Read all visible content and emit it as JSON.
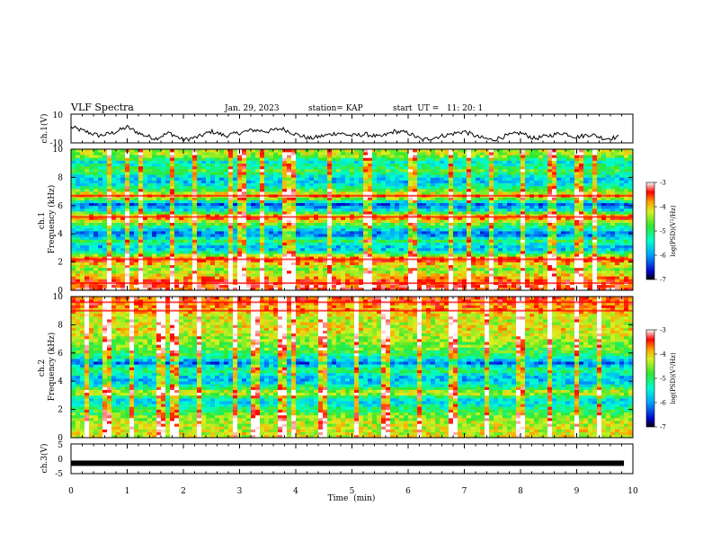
{
  "header": {
    "title": "VLF Spectra",
    "date": "Jan. 29, 2023",
    "station": "station= KAP",
    "start": "start  UT =   11: 20: 1"
  },
  "colors": {
    "accent_red": "#ff0000",
    "mid_green": "#2fe82f",
    "low_blue": "#0000c8",
    "trace": "#000000"
  },
  "chart_data": [
    {
      "id": "ch1-waveform",
      "type": "line",
      "ylabel": "ch.1(V)",
      "ylim": [
        -10,
        10
      ],
      "yticks": [
        "10",
        "-10"
      ],
      "xlim": [
        0,
        10
      ],
      "series": [
        {
          "x": [
            0,
            0.25,
            0.5,
            0.75,
            1,
            1.25,
            1.5,
            1.75,
            2,
            2.25,
            2.5,
            2.75,
            3,
            3.25,
            3.5,
            3.75,
            4,
            4.25,
            4.5,
            4.75,
            5,
            5.25,
            5.5,
            5.75,
            6,
            6.25,
            6.5,
            6.75,
            7,
            7.25,
            7.5,
            7.75,
            8,
            8.25,
            8.5,
            8.75,
            9,
            9.25,
            9.5,
            9.75
          ],
          "y": [
            1,
            -2,
            -5,
            -3,
            1,
            -4,
            -7,
            -3,
            -8,
            -6,
            -2,
            -5,
            -3,
            -1,
            -2,
            0,
            -4,
            -7,
            -5,
            -3,
            -5,
            -4,
            -6,
            -2,
            -3,
            -8,
            -6,
            -4,
            -2,
            -6,
            -8,
            -5,
            -3,
            -7,
            -5,
            -3,
            -6,
            -4,
            -7,
            -6
          ]
        }
      ]
    },
    {
      "id": "ch1-spectrogram",
      "type": "heatmap",
      "ylabel": "ch.1\nFrequency (kHz)",
      "ylim": [
        0,
        10
      ],
      "xlim": [
        0,
        10
      ],
      "yticks": [
        "0",
        "2",
        "4",
        "6",
        "8",
        "10"
      ],
      "colorbar": {
        "label": "log(PSD)(V²/Hz)",
        "range": [
          -7,
          -3
        ],
        "ticks": [
          "-3",
          "-4",
          "-5",
          "-6",
          "-7"
        ]
      },
      "band_levels": [
        {
          "f": 0.5,
          "level": -3.4
        },
        {
          "f": 1.5,
          "level": -4.6
        },
        {
          "f": 2.2,
          "level": -3.4
        },
        {
          "f": 2.7,
          "level": -5.2
        },
        {
          "f": 3.0,
          "level": -6.0
        },
        {
          "f": 3.5,
          "level": -5.0
        },
        {
          "f": 4.0,
          "level": -6.3
        },
        {
          "f": 4.6,
          "level": -5.0
        },
        {
          "f": 5.2,
          "level": -3.5
        },
        {
          "f": 5.7,
          "level": -5.6
        },
        {
          "f": 6.1,
          "level": -6.2
        },
        {
          "f": 6.7,
          "level": -3.8
        },
        {
          "f": 7.3,
          "level": -5.2
        },
        {
          "f": 7.8,
          "level": -5.9
        },
        {
          "f": 8.5,
          "level": -4.8
        },
        {
          "f": 9.1,
          "level": -5.5
        },
        {
          "f": 9.6,
          "level": -4.4
        }
      ],
      "impulse_times": [
        0.68,
        1.0,
        1.25,
        1.78,
        2.2,
        2.85,
        3.05,
        3.4,
        3.78,
        3.92,
        4.6,
        5.3,
        6.1,
        6.78,
        7.08,
        7.5,
        8.05,
        8.55,
        9.05,
        9.3
      ]
    },
    {
      "id": "ch2-spectrogram",
      "type": "heatmap",
      "ylabel": "ch.2\nFrequency (kHz)",
      "ylim": [
        0,
        10
      ],
      "xlim": [
        0,
        10
      ],
      "yticks": [
        "0",
        "2",
        "4",
        "6",
        "8",
        "10"
      ],
      "colorbar": {
        "label": "log(PSD)(V²/Hz)",
        "range": [
          -7,
          -3
        ],
        "ticks": [
          "-3",
          "-4",
          "-5",
          "-6",
          "-7"
        ]
      },
      "band_levels": [
        {
          "f": 0.5,
          "level": -4.2
        },
        {
          "f": 1.3,
          "level": -4.4
        },
        {
          "f": 2.0,
          "level": -5.0
        },
        {
          "f": 2.6,
          "level": -5.8
        },
        {
          "f": 3.2,
          "level": -4.2
        },
        {
          "f": 3.8,
          "level": -5.6
        },
        {
          "f": 4.2,
          "level": -5.9
        },
        {
          "f": 4.8,
          "level": -5.0
        },
        {
          "f": 5.3,
          "level": -6.2
        },
        {
          "f": 5.8,
          "level": -5.1
        },
        {
          "f": 6.4,
          "level": -4.6
        },
        {
          "f": 7.0,
          "level": -4.5
        },
        {
          "f": 7.6,
          "level": -4.1
        },
        {
          "f": 8.3,
          "level": -4.3
        },
        {
          "f": 9.0,
          "level": -3.9
        },
        {
          "f": 9.6,
          "level": -3.6
        }
      ],
      "impulse_times": [
        0.3,
        0.65,
        1.1,
        1.6,
        1.85,
        2.3,
        2.9,
        3.3,
        3.75,
        3.95,
        4.5,
        5.1,
        5.6,
        6.2,
        6.8,
        7.4,
        8.0,
        8.5,
        9.0,
        9.4
      ]
    },
    {
      "id": "ch3-waveform",
      "type": "line",
      "ylabel": "ch.3(V)",
      "ylim": [
        -5,
        5
      ],
      "yticks": [
        "5",
        "0",
        "-5"
      ],
      "xlim": [
        0,
        10
      ],
      "xlabel": "Time  (min)",
      "xticks": [
        "0",
        "1",
        "2",
        "3",
        "4",
        "5",
        "6",
        "7",
        "8",
        "9",
        "10"
      ],
      "series": [
        {
          "x": [
            0,
            9.84
          ],
          "y": [
            -1.5,
            -1.5
          ]
        }
      ]
    }
  ]
}
